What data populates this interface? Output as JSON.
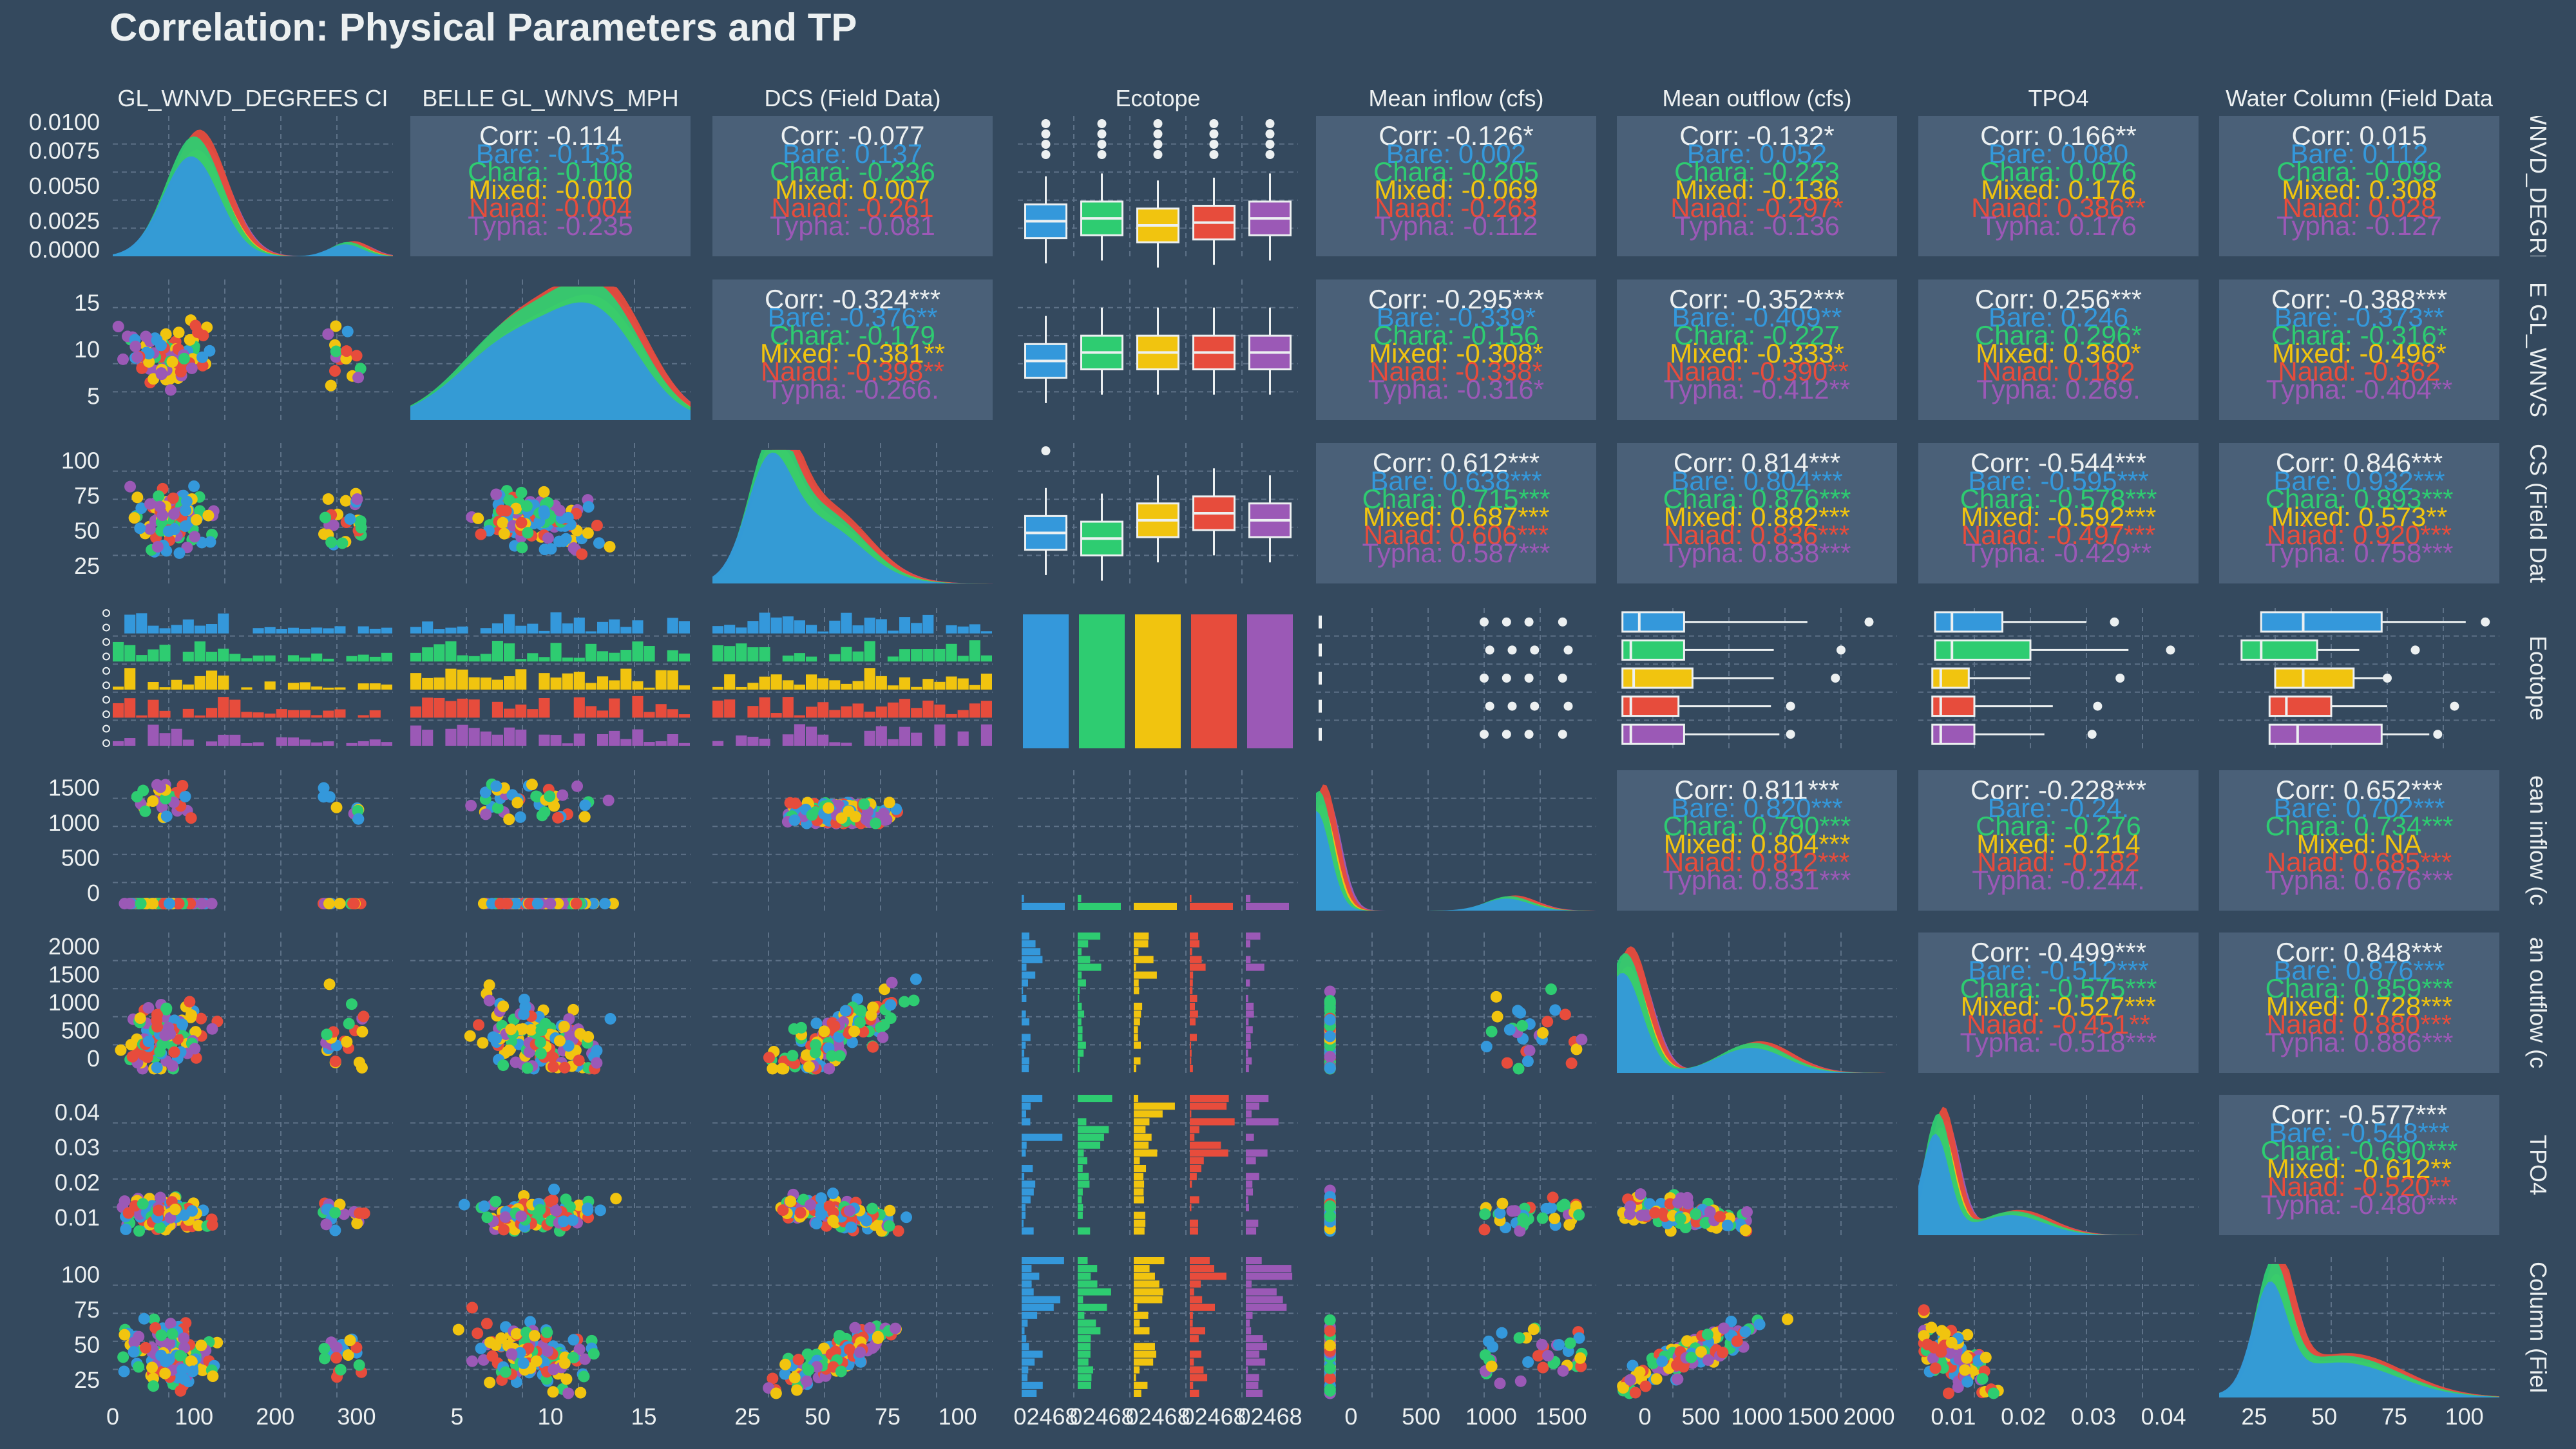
{
  "title": "Correlation: Physical Parameters and TP",
  "colors": {
    "background": "#34495e",
    "panel": "#4a6078",
    "grid": "#5d7187",
    "text": "#ecf0f1",
    "Bare": "#3498db",
    "Chara": "#2ecc71",
    "Mixed": "#f1c40f",
    "Naiad": "#e74c3c",
    "Typha": "#9b59b6"
  },
  "chart_data": {
    "type": "scatter-matrix",
    "variables": [
      "GL_WNVD_DEGREES CI",
      "BELLE GL_WNVS_MPH",
      "DCS (Field Data)",
      "Ecotope",
      "Mean inflow (cfs)",
      "Mean outflow (cfs)",
      "TPO4",
      "Water Column (Field Data)"
    ],
    "column_headers": [
      "GL_WNVD_DEGREES CI",
      "BELLE GL_WNVS_MPH",
      "DCS (Field Data)",
      "Ecotope",
      "Mean inflow (cfs)",
      "Mean outflow (cfs)",
      "TPO4",
      "Water Column (Field Data"
    ],
    "row_strips": [
      "WNVD_DEGRE",
      "E GL_WNVS",
      "CS (Field Dat",
      "Ecotope",
      "ean inflow (c",
      "an outflow (c",
      "TPO4",
      "Column (Fiel"
    ],
    "groups": [
      "Bare",
      "Chara",
      "Mixed",
      "Naiad",
      "Typha"
    ],
    "correlations": [
      {
        "row": 0,
        "col": 1,
        "overall": "Corr: -0.114",
        "groups": [
          "Bare: -0.135",
          "Chara: -0.108",
          "Mixed: -0.010",
          "Naiad: -0.004",
          "Typha: -0.235"
        ]
      },
      {
        "row": 0,
        "col": 2,
        "overall": "Corr: -0.077",
        "groups": [
          "Bare: 0.137",
          "Chara: -0.236",
          "Mixed: 0.007",
          "Naiad: -0.261",
          "Typha: -0.081"
        ]
      },
      {
        "row": 0,
        "col": 4,
        "overall": "Corr: -0.126*",
        "groups": [
          "Bare: 0.002",
          "Chara: -0.205",
          "Mixed: -0.069",
          "Naiad: -0.263",
          "Typha: -0.112"
        ]
      },
      {
        "row": 0,
        "col": 5,
        "overall": "Corr: -0.132*",
        "groups": [
          "Bare: 0.052",
          "Chara: -0.223",
          "Mixed: -0.136",
          "Naiad: -0.297*",
          "Typha: -0.136"
        ]
      },
      {
        "row": 0,
        "col": 6,
        "overall": "Corr: 0.166**",
        "groups": [
          "Bare: 0.080",
          "Chara: 0.076",
          "Mixed: 0.176",
          "Naiad: 0.386**",
          "Typha: 0.176"
        ]
      },
      {
        "row": 0,
        "col": 7,
        "overall": "Corr: 0.015",
        "groups": [
          "Bare: 0.112",
          "Chara: -0.098",
          "Mixed: 0.308",
          "Naiad: 0.028",
          "Typha: -0.127"
        ]
      },
      {
        "row": 1,
        "col": 2,
        "overall": "Corr: -0.324***",
        "groups": [
          "Bare: -0.376**",
          "Chara: -0.179",
          "Mixed: -0.381**",
          "Naiad: -0.398**",
          "Typha: -0.266."
        ]
      },
      {
        "row": 1,
        "col": 4,
        "overall": "Corr: -0.295***",
        "groups": [
          "Bare: -0.339*",
          "Chara: -0.156",
          "Mixed: -0.308*",
          "Naiad: -0.338*",
          "Typha: -0.316*"
        ]
      },
      {
        "row": 1,
        "col": 5,
        "overall": "Corr: -0.352***",
        "groups": [
          "Bare: -0.409**",
          "Chara: -0.227",
          "Mixed: -0.333*",
          "Naiad: -0.390**",
          "Typha: -0.412**"
        ]
      },
      {
        "row": 1,
        "col": 6,
        "overall": "Corr: 0.256***",
        "groups": [
          "Bare: 0.246",
          "Chara: 0.296*",
          "Mixed: 0.360*",
          "Naiad: 0.182",
          "Typha: 0.269."
        ]
      },
      {
        "row": 1,
        "col": 7,
        "overall": "Corr: -0.388***",
        "groups": [
          "Bare: -0.373**",
          "Chara: -0.316*",
          "Mixed: -0.496*",
          "Naiad: -0.362",
          "Typha: -0.404**"
        ]
      },
      {
        "row": 2,
        "col": 4,
        "overall": "Corr: 0.612***",
        "groups": [
          "Bare: 0.638***",
          "Chara: 0.715***",
          "Mixed: 0.687***",
          "Naiad: 0.606***",
          "Typha: 0.587***"
        ]
      },
      {
        "row": 2,
        "col": 5,
        "overall": "Corr: 0.814***",
        "groups": [
          "Bare: 0.804***",
          "Chara: 0.876***",
          "Mixed: 0.882***",
          "Naiad: 0.836***",
          "Typha: 0.838***"
        ]
      },
      {
        "row": 2,
        "col": 6,
        "overall": "Corr: -0.544***",
        "groups": [
          "Bare: -0.595***",
          "Chara: -0.578***",
          "Mixed: -0.592***",
          "Naiad: -0.497***",
          "Typha: -0.429**"
        ]
      },
      {
        "row": 2,
        "col": 7,
        "overall": "Corr: 0.846***",
        "groups": [
          "Bare: 0.932***",
          "Chara: 0.893***",
          "Mixed: 0.573**",
          "Naiad: 0.920***",
          "Typha: 0.758***"
        ]
      },
      {
        "row": 4,
        "col": 5,
        "overall": "Corr: 0.811***",
        "groups": [
          "Bare: 0.820***",
          "Chara: 0.790***",
          "Mixed: 0.804***",
          "Naiad: 0.812***",
          "Typha: 0.831***"
        ]
      },
      {
        "row": 4,
        "col": 6,
        "overall": "Corr: -0.228***",
        "groups": [
          "Bare: -0.24.",
          "Chara: -0.276",
          "Mixed: -0.214",
          "Naiad: -0.182",
          "Typha: -0.244."
        ]
      },
      {
        "row": 4,
        "col": 7,
        "overall": "Corr: 0.652***",
        "groups": [
          "Bare: 0.702***",
          "Chara: 0.734***",
          "Mixed: NA",
          "Naiad: 0.685***",
          "Typha: 0.676***"
        ]
      },
      {
        "row": 5,
        "col": 6,
        "overall": "Corr: -0.499***",
        "groups": [
          "Bare: -0.512***",
          "Chara: -0.575***",
          "Mixed: -0.527***",
          "Naiad: -0.451**",
          "Typha: -0.518***"
        ]
      },
      {
        "row": 5,
        "col": 7,
        "overall": "Corr: 0.848***",
        "groups": [
          "Bare: 0.876***",
          "Chara: 0.859***",
          "Mixed: 0.728***",
          "Naiad: 0.880***",
          "Typha: 0.886***"
        ]
      },
      {
        "row": 6,
        "col": 7,
        "overall": "Corr: -0.577***",
        "groups": [
          "Bare: -0.548***",
          "Chara: -0.690***",
          "Mixed: -0.612**",
          "Naiad: -0.520**",
          "Typha: -0.480***"
        ]
      }
    ],
    "y_axis_ticks": [
      [
        "0.0000",
        "0.0025",
        "0.0050",
        "0.0075",
        "0.0100"
      ],
      [
        "5",
        "10",
        "15"
      ],
      [
        "25",
        "50",
        "75",
        "100"
      ],
      [],
      [
        "0",
        "500",
        "1000",
        "1500"
      ],
      [
        "0",
        "500",
        "1000",
        "1500",
        "2000"
      ],
      [
        "0.01",
        "0.02",
        "0.03",
        "0.04"
      ],
      [
        "25",
        "50",
        "75",
        "100"
      ]
    ],
    "x_axis_ticks": [
      [
        "0",
        "100",
        "200",
        "300"
      ],
      [
        "5",
        "10",
        "15"
      ],
      [
        "25",
        "50",
        "75",
        "100"
      ],
      [
        "02468",
        "02468",
        "02468",
        "02468",
        "02468"
      ],
      [
        "0",
        "500",
        "1000",
        "1500"
      ],
      [
        "0",
        "500",
        "1000",
        "1500",
        "2000"
      ],
      [
        "0.01",
        "0.02",
        "0.03",
        "0.04"
      ],
      [
        "25",
        "50",
        "75",
        "100"
      ]
    ],
    "ranges": [
      [
        0,
        370
      ],
      [
        1,
        19
      ],
      [
        22,
        118
      ],
      [
        0,
        5
      ],
      [
        -80,
        1620
      ],
      [
        -60,
        2250
      ],
      [
        0.002,
        0.046
      ],
      [
        5,
        100
      ]
    ],
    "grid": true,
    "legend": "none"
  }
}
